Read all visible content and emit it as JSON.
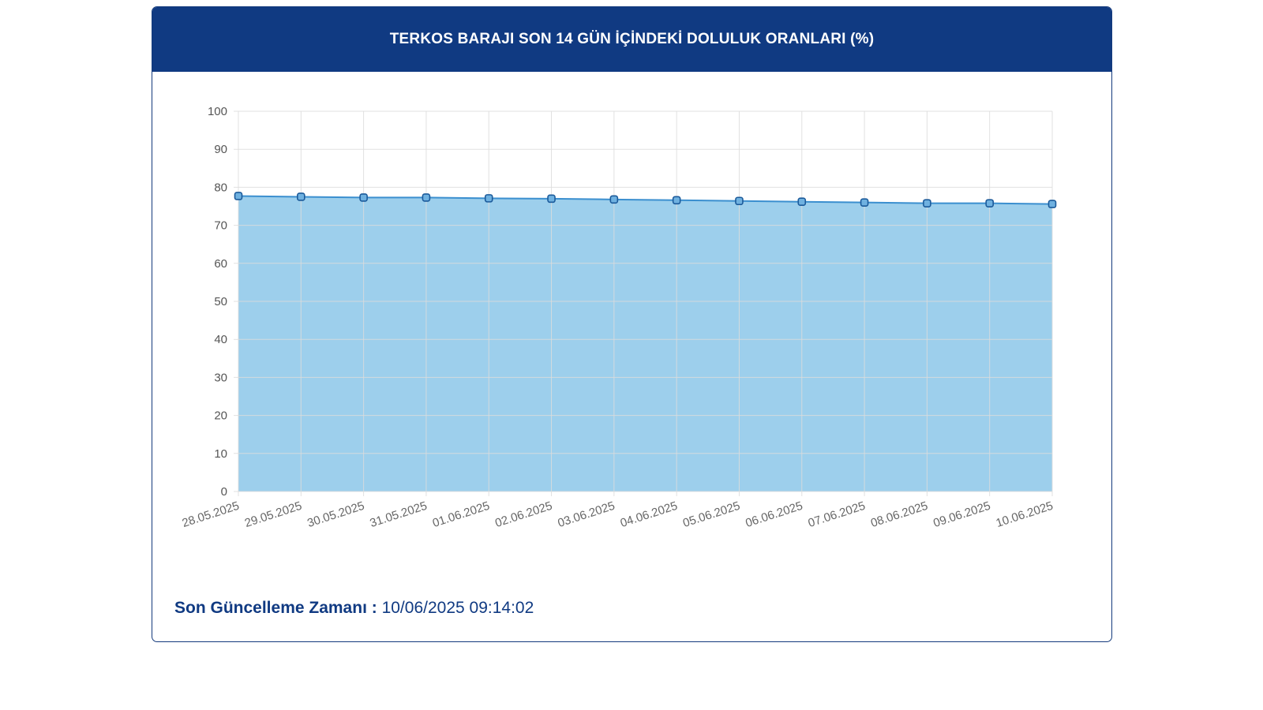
{
  "header": {
    "title": "TERKOS BARAJI SON 14 GÜN İÇİNDEKİ DOLULUK ORANLARI (%)"
  },
  "footer": {
    "label": "Son Güncelleme Zamanı :",
    "value": "10/06/2025 09:14:02"
  },
  "colors": {
    "header_bg": "#103a82",
    "line": "#3b8fcf",
    "area_fill": "#9dcfec",
    "marker_fill": "#6fb1e0",
    "marker_stroke": "#1b5a9a",
    "grid": "#dcdcdc"
  },
  "chart_data": {
    "type": "area",
    "title": "TERKOS BARAJI SON 14 GÜN İÇİNDEKİ DOLULUK ORANLARI (%)",
    "xlabel": "",
    "ylabel": "",
    "categories": [
      "28.05.2025",
      "29.05.2025",
      "30.05.2025",
      "31.05.2025",
      "01.06.2025",
      "02.06.2025",
      "03.06.2025",
      "04.06.2025",
      "05.06.2025",
      "06.06.2025",
      "07.06.2025",
      "08.06.2025",
      "09.06.2025",
      "10.06.2025"
    ],
    "values": [
      77.7,
      77.5,
      77.3,
      77.3,
      77.1,
      77.0,
      76.8,
      76.6,
      76.4,
      76.2,
      76.0,
      75.8,
      75.8,
      75.6
    ],
    "ylim": [
      0,
      100
    ],
    "yticks": [
      0,
      10,
      20,
      30,
      40,
      50,
      60,
      70,
      80,
      90,
      100
    ],
    "grid": true,
    "legend": "none"
  }
}
